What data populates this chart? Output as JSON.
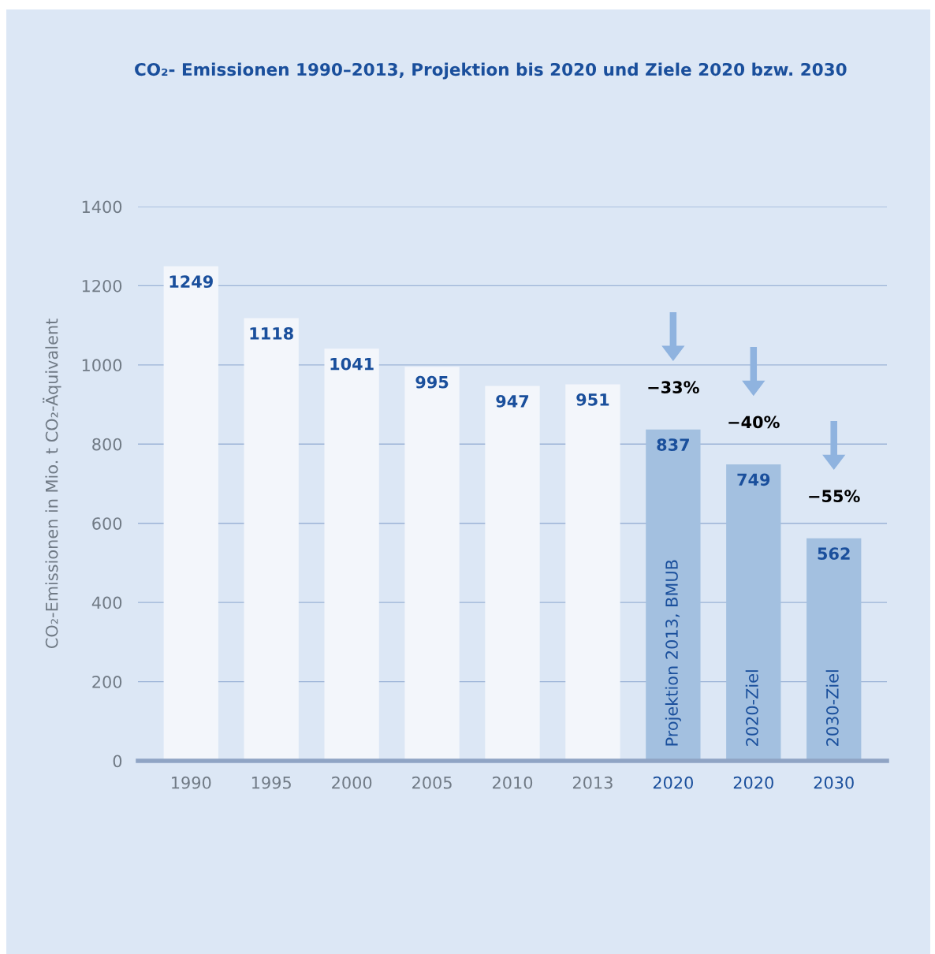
{
  "chart_data": {
    "type": "bar",
    "title": "CO₂- Emissionen 1990–2013, Projektion bis 2020 und Ziele 2020 bzw. 2030",
    "ylabel": "CO₂-Emissionen in Mio. t CO₂-Äquivalent",
    "categories": [
      "1990",
      "1995",
      "2000",
      "2005",
      "2010",
      "2013",
      "2020",
      "2020",
      "2030"
    ],
    "values": [
      1249,
      1118,
      1041,
      995,
      947,
      951,
      837,
      749,
      562
    ],
    "colors": [
      "#f3f6fb",
      "#f3f6fb",
      "#f3f6fb",
      "#f3f6fb",
      "#f3f6fb",
      "#f3f6fb",
      "#a3c0e0",
      "#a3c0e0",
      "#a3c0e0"
    ],
    "ylim": [
      0,
      1400
    ],
    "yticks": [
      0,
      200,
      400,
      600,
      800,
      1000,
      1200,
      1400
    ],
    "grid": "y",
    "data_labels": true,
    "annotations": [
      "−33%",
      "−40%",
      "−55%",
      "Projektion 2013, BMUB",
      "2020-Ziel",
      "2030-Ziel"
    ]
  }
}
